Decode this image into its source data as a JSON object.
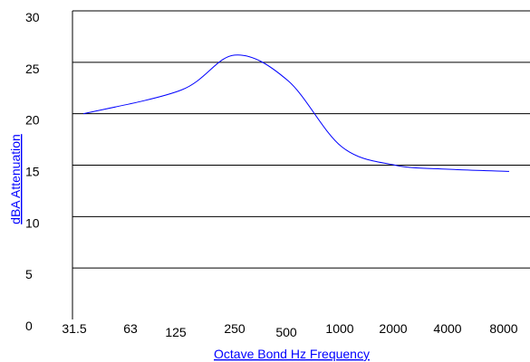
{
  "chart_data": {
    "type": "line",
    "xlabel": "Octave Bond Hz Frequency",
    "ylabel": "dBA Attenuation",
    "x_tick_labels": [
      "31.5",
      "63",
      "125",
      "250",
      "500",
      "1000",
      "2000",
      "4000",
      "8000"
    ],
    "y_tick_labels": [
      "30",
      "25",
      "20",
      "15",
      "10",
      "5",
      "0"
    ],
    "ylim": [
      0,
      30
    ],
    "grid": true,
    "series": [
      {
        "x": [
          "63",
          "125",
          "250",
          "500",
          "1000",
          "2000",
          "4000",
          "8000"
        ],
        "values": [
          20,
          22.3,
          25.7,
          23.2,
          16.8,
          15,
          14.6,
          14.4
        ],
        "color": "#0000ff"
      }
    ]
  }
}
